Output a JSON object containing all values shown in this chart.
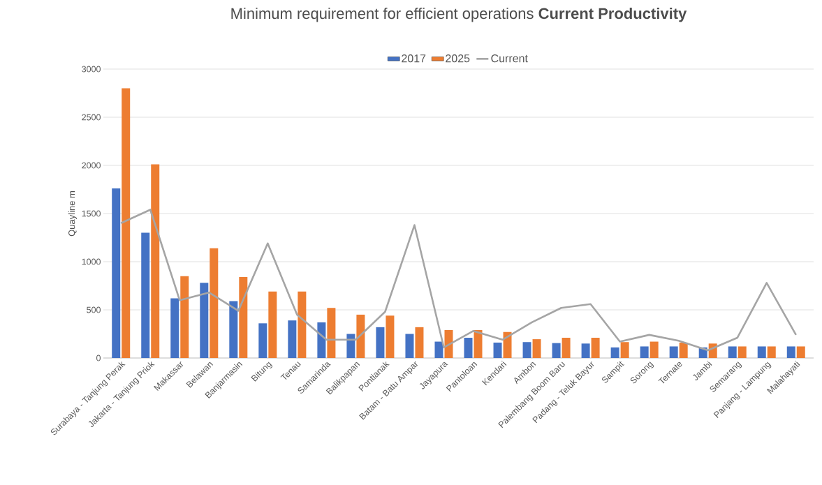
{
  "chart_data": {
    "type": "bar",
    "title": "Minimum requirement for efficient operations **Current Productivity**",
    "ylabel": "Quayline m",
    "categories": [
      "Surabaya - Tanjung Perak",
      "Jakarta - Tanjung Priok",
      "Makassar",
      "Belawan",
      "Banjarmasin",
      "Bitung",
      "Tenau",
      "Samarinda",
      "Balikpapan",
      "Pontianak",
      "Batam - Batu Ampar",
      "Jayapura",
      "Pantoloan",
      "Kendari",
      "Ambon",
      "Palembang Boom Baru",
      "Padang - Teluk Bayur",
      "Sampit",
      "Sorong",
      "Ternate",
      "Jambi",
      "Semarang",
      "Panjang - Lampung",
      "Malahayati"
    ],
    "series": [
      {
        "name": "2017",
        "color": "#4472c4",
        "values": [
          1760,
          1300,
          620,
          780,
          590,
          360,
          390,
          370,
          250,
          320,
          250,
          170,
          210,
          160,
          165,
          155,
          150,
          110,
          120,
          120,
          110,
          120,
          120,
          120
        ]
      },
      {
        "name": "2025",
        "color": "#ed7d31",
        "values": [
          2800,
          2010,
          850,
          1140,
          840,
          690,
          690,
          520,
          450,
          440,
          320,
          290,
          290,
          270,
          195,
          210,
          210,
          165,
          170,
          160,
          150,
          120,
          120,
          120
        ]
      },
      {
        "name": "Current",
        "type": "line",
        "color": "#a5a5a5",
        "values": [
          1400,
          1540,
          600,
          680,
          490,
          1190,
          450,
          190,
          190,
          480,
          1380,
          110,
          280,
          190,
          370,
          520,
          560,
          170,
          240,
          180,
          80,
          210,
          780,
          240
        ]
      }
    ],
    "ylim": [
      0,
      3000
    ],
    "yticks": [
      0,
      500,
      1000,
      1500,
      2000,
      2500,
      3000
    ],
    "grid": "y",
    "legend": "top"
  }
}
